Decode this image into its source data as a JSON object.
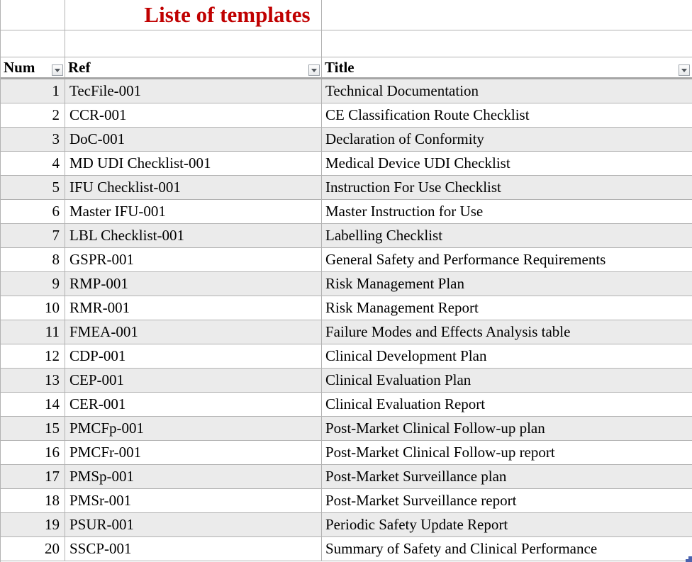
{
  "title": "Liste of templates",
  "columns": [
    {
      "label": "Num"
    },
    {
      "label": "Ref"
    },
    {
      "label": "Title"
    }
  ],
  "rows": [
    {
      "num": "1",
      "ref": "TecFile-001",
      "title": "Technical Documentation"
    },
    {
      "num": "2",
      "ref": "CCR-001",
      "title": "CE Classification Route Checklist"
    },
    {
      "num": "3",
      "ref": "DoC-001",
      "title": "Declaration of Conformity"
    },
    {
      "num": "4",
      "ref": "MD UDI Checklist-001",
      "title": "Medical Device UDI Checklist"
    },
    {
      "num": "5",
      "ref": "IFU Checklist-001",
      "title": "Instruction For Use Checklist"
    },
    {
      "num": "6",
      "ref": "Master IFU-001",
      "title": "Master Instruction for Use"
    },
    {
      "num": "7",
      "ref": "LBL Checklist-001",
      "title": "Labelling Checklist"
    },
    {
      "num": "8",
      "ref": "GSPR-001",
      "title": "General Safety and Performance Requirements"
    },
    {
      "num": "9",
      "ref": "RMP-001",
      "title": "Risk Management Plan"
    },
    {
      "num": "10",
      "ref": "RMR-001",
      "title": "Risk Management Report"
    },
    {
      "num": "11",
      "ref": "FMEA-001",
      "title": "Failure Modes and Effects Analysis table"
    },
    {
      "num": "12",
      "ref": "CDP-001",
      "title": "Clinical Development Plan"
    },
    {
      "num": "13",
      "ref": "CEP-001",
      "title": "Clinical Evaluation Plan"
    },
    {
      "num": "14",
      "ref": "CER-001",
      "title": "Clinical Evaluation Report"
    },
    {
      "num": "15",
      "ref": "PMCFp-001",
      "title": "Post-Market Clinical Follow-up plan"
    },
    {
      "num": "16",
      "ref": "PMCFr-001",
      "title": "Post-Market Clinical Follow-up report"
    },
    {
      "num": "17",
      "ref": "PMSp-001",
      "title": "Post-Market Surveillance plan"
    },
    {
      "num": "18",
      "ref": "PMSr-001",
      "title": "Post-Market Surveillance report"
    },
    {
      "num": "19",
      "ref": "PSUR-001",
      "title": "Periodic Safety Update Report"
    },
    {
      "num": "20",
      "ref": "SSCP-001",
      "title": "Summary of Safety and Clinical Performance"
    }
  ],
  "icons": {
    "filter_dropdown": "chevron-down-icon",
    "resize_handle": "table-resize-handle"
  },
  "colors": {
    "title_red": "#c00000",
    "stripe_gray": "#ebebeb",
    "gridline": "#b2b2b2",
    "header_underline": "#a6a6a6",
    "handle_blue": "#4a62ae"
  }
}
